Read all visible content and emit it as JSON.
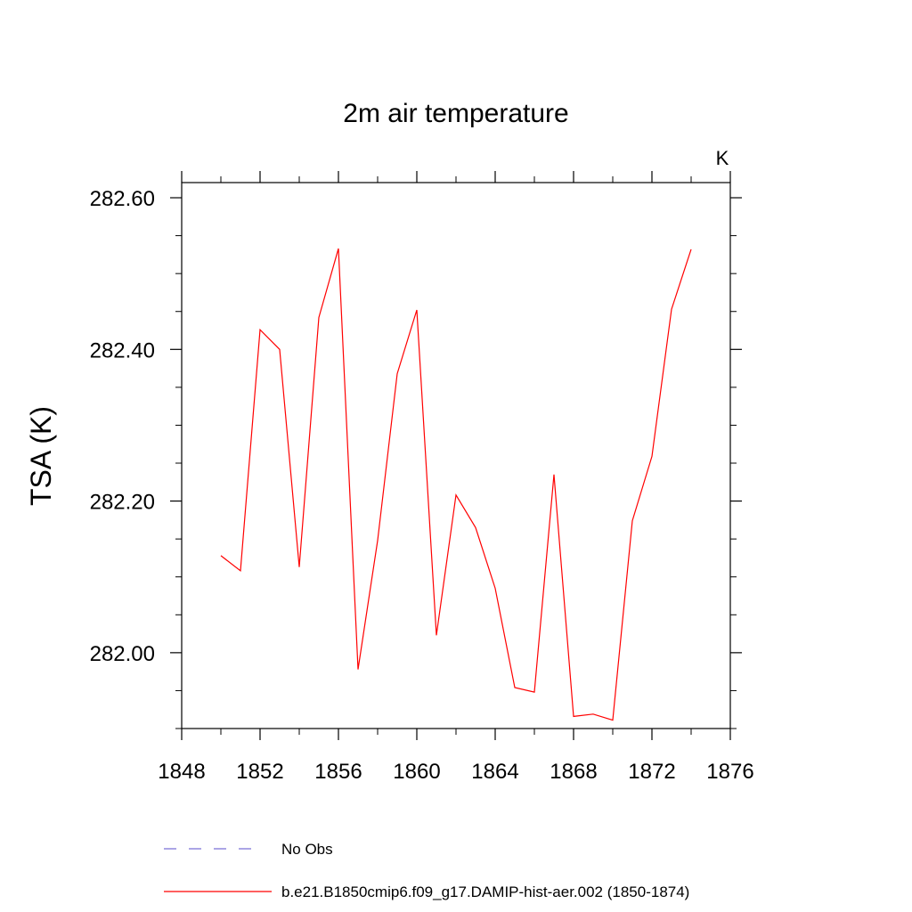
{
  "chart_data": {
    "type": "line",
    "title": "2m air temperature",
    "units_label": "K",
    "xlabel": "",
    "ylabel": "TSA  (K)",
    "xlim": [
      1848,
      1876
    ],
    "ylim": [
      281.9,
      282.62
    ],
    "x_ticks": [
      1848,
      1852,
      1856,
      1860,
      1864,
      1868,
      1872,
      1876
    ],
    "x_tick_labels": [
      "1848",
      "1852",
      "1856",
      "1860",
      "1864",
      "1868",
      "1872",
      "1876"
    ],
    "y_ticks": [
      282.0,
      282.2,
      282.4,
      282.6
    ],
    "y_tick_labels": [
      "282.00",
      "282.20",
      "282.40",
      "282.60"
    ],
    "y_minor_step": 0.05,
    "x_minor_step": 2,
    "grid": false,
    "legend_position": "bottom-left, below plot",
    "series": [
      {
        "name": "No Obs",
        "color": "#7b6fd6",
        "dash": "dashed",
        "x": [],
        "values": []
      },
      {
        "name": "b.e21.B1850cmip6.f09_g17.DAMIP-hist-aer.002 (1850-1874)",
        "color": "#ff0000",
        "dash": "solid",
        "x": [
          1850,
          1851,
          1852,
          1853,
          1854,
          1855,
          1856,
          1857,
          1858,
          1859,
          1860,
          1861,
          1862,
          1863,
          1864,
          1865,
          1866,
          1867,
          1868,
          1869,
          1870,
          1871,
          1872,
          1873,
          1874
        ],
        "values": [
          282.128,
          282.108,
          282.426,
          282.4,
          282.113,
          282.442,
          282.533,
          281.978,
          282.148,
          282.368,
          282.452,
          282.023,
          282.208,
          282.165,
          282.085,
          281.954,
          281.948,
          282.235,
          281.916,
          281.919,
          281.911,
          282.174,
          282.259,
          282.453,
          282.532
        ]
      }
    ]
  }
}
